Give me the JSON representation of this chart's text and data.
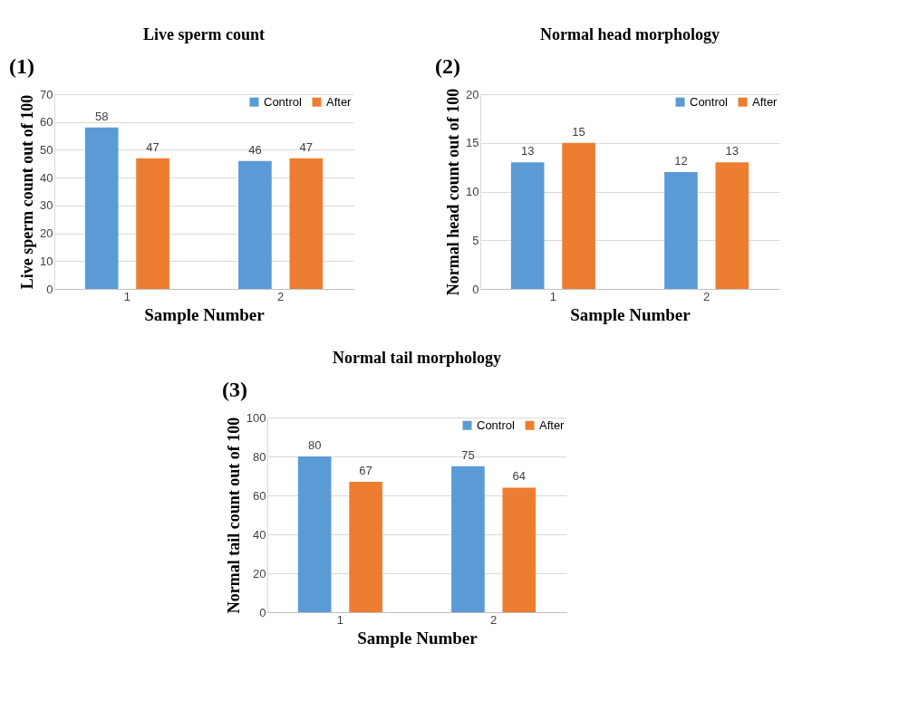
{
  "chart_data": [
    {
      "type": "bar",
      "title": "Live sperm count",
      "xlabel": "Sample Number",
      "ylabel": "Live sperm count out of 100",
      "annotations": [
        "(1)"
      ],
      "categories": [
        "1",
        "2"
      ],
      "series": [
        {
          "name": "Control",
          "color": "#5b9bd5",
          "values": [
            58,
            46
          ]
        },
        {
          "name": "After",
          "color": "#ed7d31",
          "values": [
            47,
            47
          ]
        }
      ],
      "ylim": [
        0,
        70
      ],
      "yticks": [
        0,
        10,
        20,
        30,
        40,
        50,
        60,
        70
      ],
      "grid": "y",
      "legend": "top right",
      "data_labels": true
    },
    {
      "type": "bar",
      "title": "Normal head morphology",
      "xlabel": "Sample Number",
      "ylabel": "Normal head count out of 100",
      "annotations": [
        "(2)"
      ],
      "categories": [
        "1",
        "2"
      ],
      "series": [
        {
          "name": "Control",
          "color": "#5b9bd5",
          "values": [
            13,
            12
          ]
        },
        {
          "name": "After",
          "color": "#ed7d31",
          "values": [
            15,
            13
          ]
        }
      ],
      "ylim": [
        0,
        20
      ],
      "yticks": [
        0,
        5,
        10,
        15,
        20
      ],
      "grid": "y",
      "legend": "top right",
      "data_labels": true
    },
    {
      "type": "bar",
      "title": "Normal tail morphology",
      "xlabel": "Sample Number",
      "ylabel": "Normal tail count out of 100",
      "annotations": [
        "(3)"
      ],
      "categories": [
        "1",
        "2"
      ],
      "series": [
        {
          "name": "Control",
          "color": "#5b9bd5",
          "values": [
            80,
            75
          ]
        },
        {
          "name": "After",
          "color": "#ed7d31",
          "values": [
            67,
            64
          ]
        }
      ],
      "ylim": [
        0,
        100
      ],
      "yticks": [
        0,
        20,
        40,
        60,
        80,
        100
      ],
      "grid": "y",
      "legend": "top right",
      "data_labels": true
    }
  ]
}
